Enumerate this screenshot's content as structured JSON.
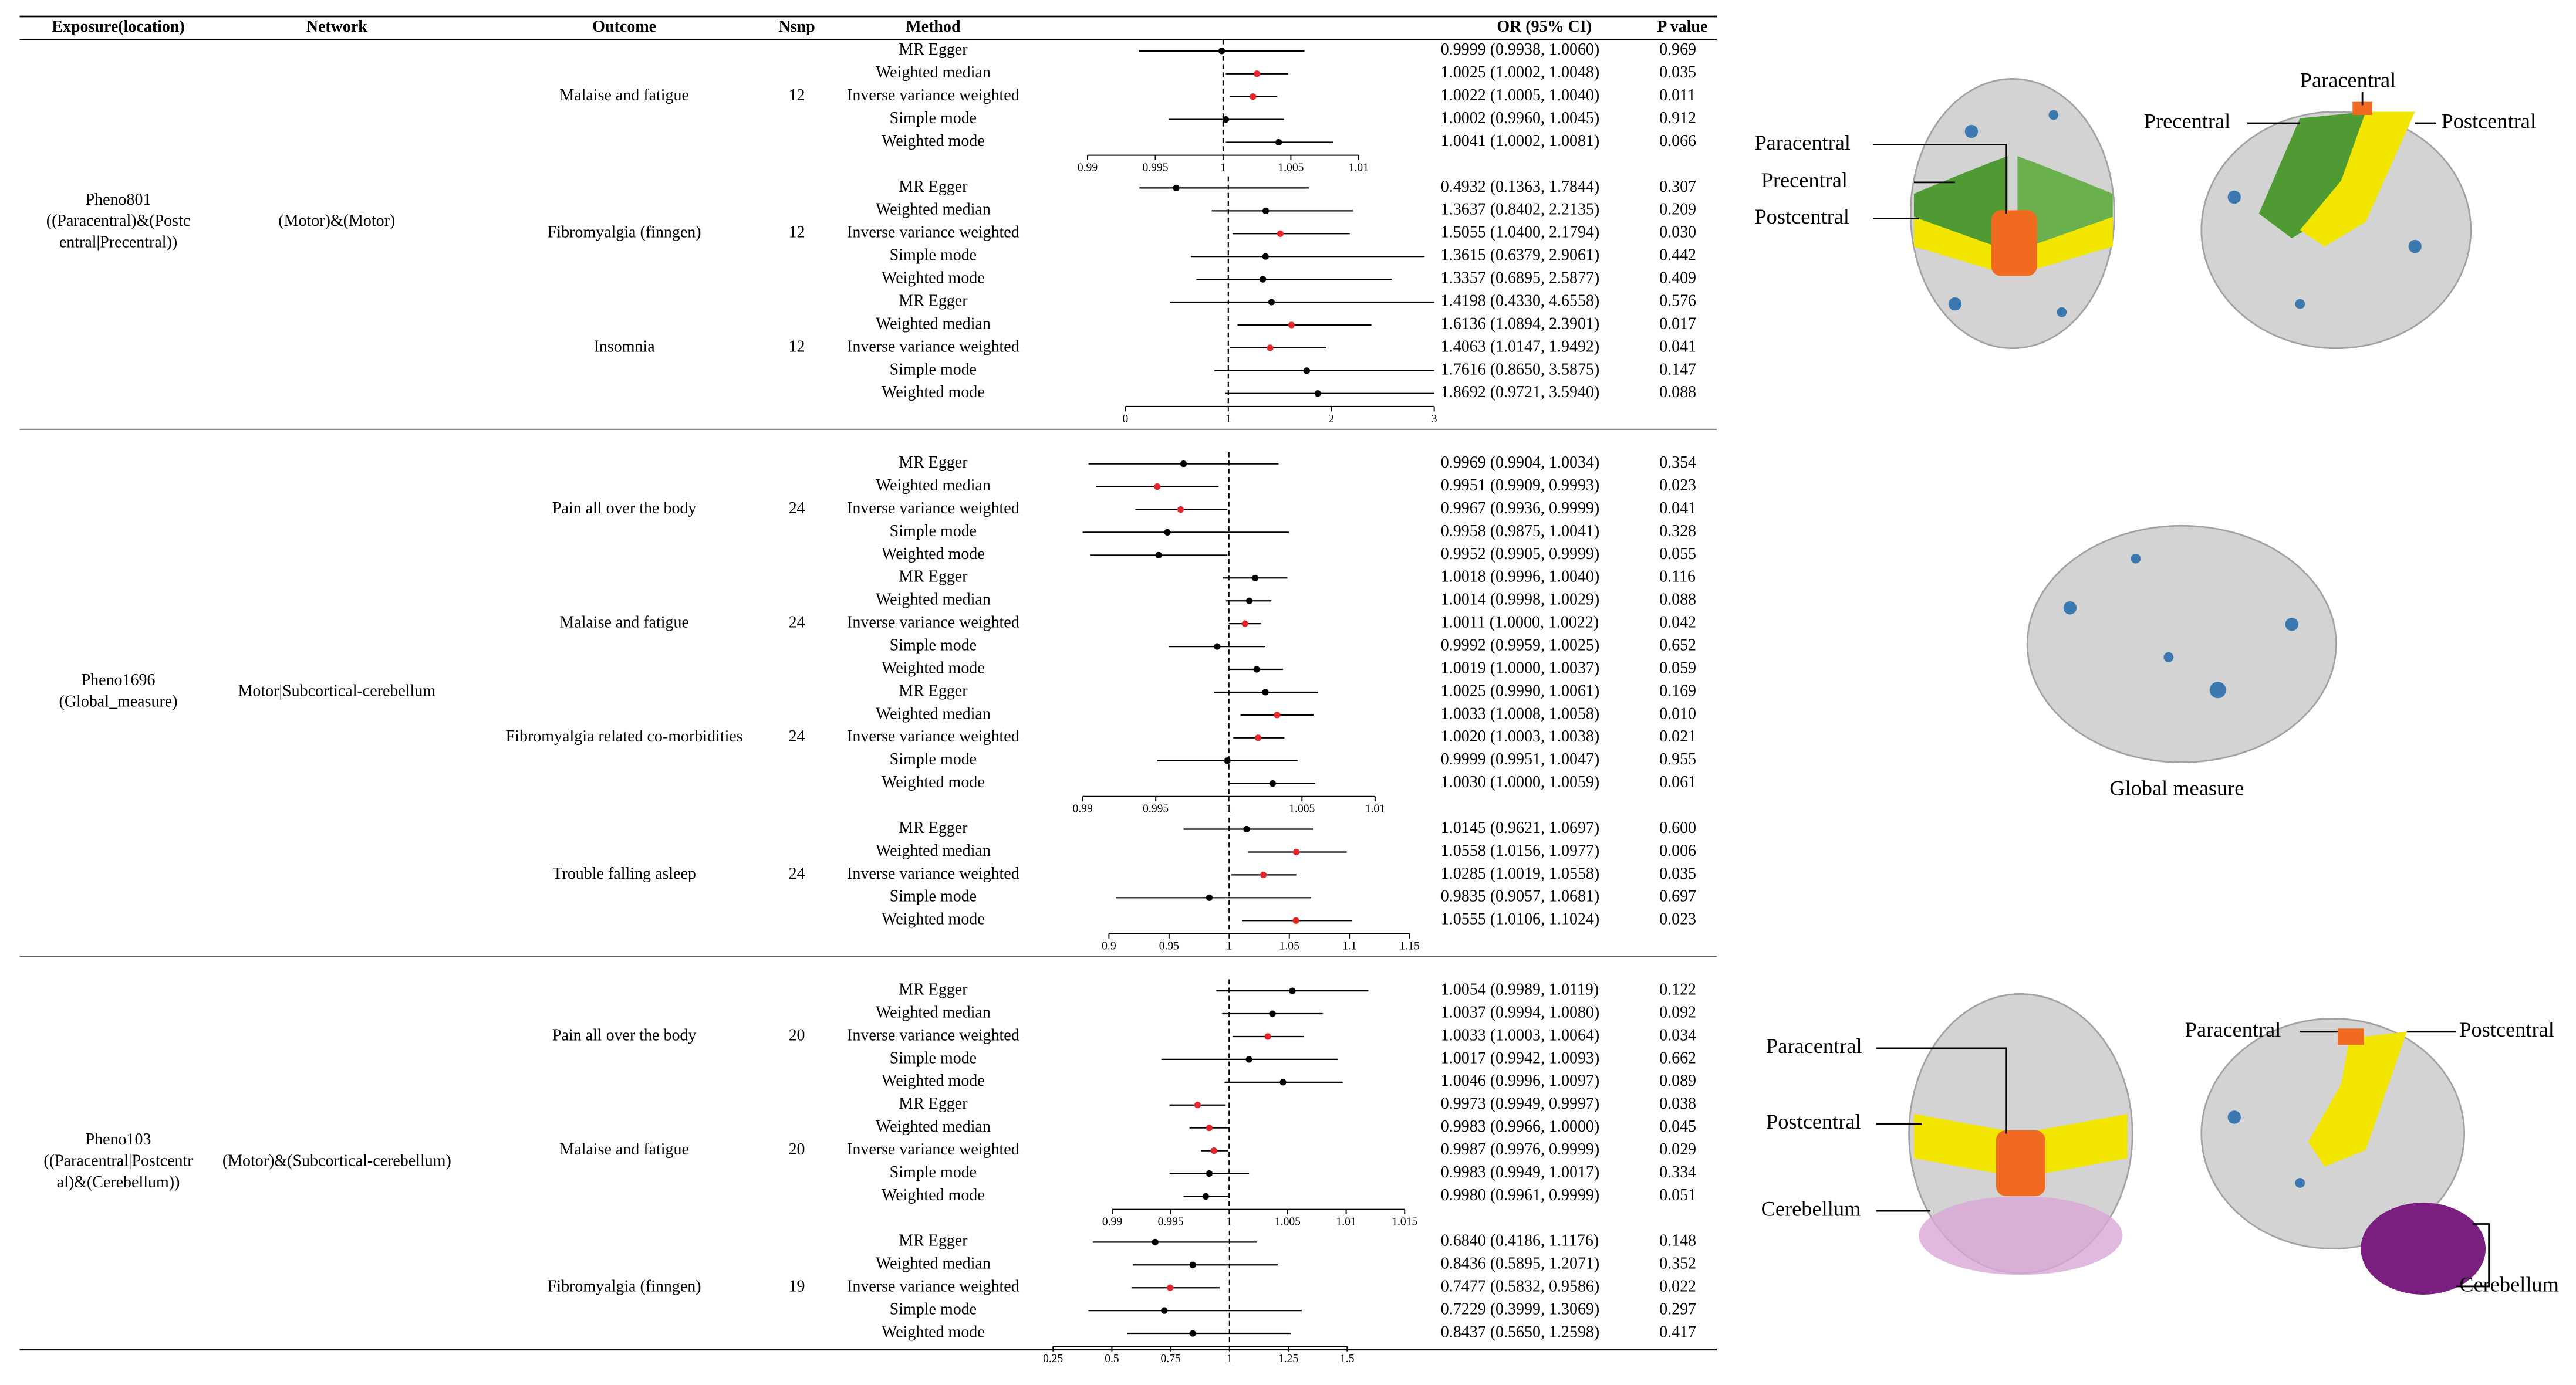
{
  "header": {
    "exposure": "Exposure(location)",
    "network": "Network",
    "outcome": "Outcome",
    "nsnp": "Nsnp",
    "method": "Method",
    "or": "OR (95% CI)",
    "p": "P value"
  },
  "reference_line": 1,
  "groups": [
    {
      "exposure": [
        "Pheno801",
        "((Paracentral)&(Postc",
        "entral|Precentral))"
      ],
      "network": "(Motor)&(Motor)",
      "panels": [
        {
          "xlim": [
            0.99,
            1.01
          ],
          "xticks": [
            0.99,
            0.995,
            1,
            1.005,
            1.01
          ],
          "outcomes": [
            {
              "name": "Malaise and fatigue",
              "nsnp": 12,
              "rows": [
                {
                  "method": "MR Egger",
                  "or": 0.9999,
                  "lo": 0.9938,
                  "hi": 1.006,
                  "or_ci": "0.9999 (0.9938, 1.0060)",
                  "p": "0.969",
                  "color": "#000000"
                },
                {
                  "method": "Weighted median",
                  "or": 1.0025,
                  "lo": 1.0002,
                  "hi": 1.0048,
                  "or_ci": "1.0025 (1.0002, 1.0048)",
                  "p": "0.035",
                  "color": "#e3262b"
                },
                {
                  "method": "Inverse variance weighted",
                  "or": 1.0022,
                  "lo": 1.0005,
                  "hi": 1.004,
                  "or_ci": "1.0022 (1.0005, 1.0040)",
                  "p": "0.011",
                  "color": "#e3262b"
                },
                {
                  "method": "Simple mode",
                  "or": 1.0002,
                  "lo": 0.996,
                  "hi": 1.0045,
                  "or_ci": "1.0002 (0.9960, 1.0045)",
                  "p": "0.912",
                  "color": "#000000"
                },
                {
                  "method": "Weighted mode",
                  "or": 1.0041,
                  "lo": 1.0002,
                  "hi": 1.0081,
                  "or_ci": "1.0041 (1.0002, 1.0081)",
                  "p": "0.066",
                  "color": "#000000"
                }
              ]
            }
          ]
        },
        {
          "xlim": [
            0,
            3
          ],
          "xticks": [
            0,
            1,
            2,
            3
          ],
          "outcomes": [
            {
              "name": "Fibromyalgia (finngen)",
              "nsnp": 12,
              "rows": [
                {
                  "method": "MR Egger",
                  "or": 0.4932,
                  "lo": 0.1363,
                  "hi": 1.7844,
                  "or_ci": "0.4932 (0.1363, 1.7844)",
                  "p": "0.307",
                  "color": "#000000"
                },
                {
                  "method": "Weighted median",
                  "or": 1.3637,
                  "lo": 0.8402,
                  "hi": 2.2135,
                  "or_ci": "1.3637 (0.8402, 2.2135)",
                  "p": "0.209",
                  "color": "#000000"
                },
                {
                  "method": "Inverse variance weighted",
                  "or": 1.5055,
                  "lo": 1.04,
                  "hi": 2.1794,
                  "or_ci": "1.5055 (1.0400, 2.1794)",
                  "p": "0.030",
                  "color": "#e3262b"
                },
                {
                  "method": "Simple mode",
                  "or": 1.3615,
                  "lo": 0.6379,
                  "hi": 2.9061,
                  "or_ci": "1.3615 (0.6379, 2.9061)",
                  "p": "0.442",
                  "color": "#000000"
                },
                {
                  "method": "Weighted mode",
                  "or": 1.3357,
                  "lo": 0.6895,
                  "hi": 2.5877,
                  "or_ci": "1.3357 (0.6895, 2.5877)",
                  "p": "0.409",
                  "color": "#000000"
                }
              ]
            },
            {
              "name": "Insomnia",
              "nsnp": 12,
              "rows": [
                {
                  "method": "MR Egger",
                  "or": 1.4198,
                  "lo": 0.433,
                  "hi": 4.6558,
                  "or_ci": "1.4198 (0.4330, 4.6558)",
                  "p": "0.576",
                  "color": "#000000"
                },
                {
                  "method": "Weighted median",
                  "or": 1.6136,
                  "lo": 1.0894,
                  "hi": 2.3901,
                  "or_ci": "1.6136 (1.0894, 2.3901)",
                  "p": "0.017",
                  "color": "#e3262b"
                },
                {
                  "method": "Inverse variance weighted",
                  "or": 1.4063,
                  "lo": 1.0147,
                  "hi": 1.9492,
                  "or_ci": "1.4063 (1.0147, 1.9492)",
                  "p": "0.041",
                  "color": "#e3262b"
                },
                {
                  "method": "Simple mode",
                  "or": 1.7616,
                  "lo": 0.865,
                  "hi": 3.5875,
                  "or_ci": "1.7616 (0.8650, 3.5875)",
                  "p": "0.147",
                  "color": "#000000"
                },
                {
                  "method": "Weighted mode",
                  "or": 1.8692,
                  "lo": 0.9721,
                  "hi": 3.594,
                  "or_ci": "1.8692 (0.9721, 3.5940)",
                  "p": "0.088",
                  "color": "#000000"
                }
              ]
            }
          ]
        }
      ]
    },
    {
      "exposure": [
        "Pheno1696",
        "(Global_measure)"
      ],
      "network": "Motor|Subcortical-cerebellum",
      "panels": [
        {
          "xlim": [
            0.99,
            1.01
          ],
          "xticks": [
            0.99,
            0.995,
            1,
            1.005,
            1.01
          ],
          "outcomes": [
            {
              "name": "Pain all over the body",
              "nsnp": 24,
              "rows": [
                {
                  "method": "MR Egger",
                  "or": 0.9969,
                  "lo": 0.9904,
                  "hi": 1.0034,
                  "or_ci": "0.9969 (0.9904, 1.0034)",
                  "p": "0.354",
                  "color": "#000000"
                },
                {
                  "method": "Weighted median",
                  "or": 0.9951,
                  "lo": 0.9909,
                  "hi": 0.9993,
                  "or_ci": "0.9951 (0.9909, 0.9993)",
                  "p": "0.023",
                  "color": "#e3262b"
                },
                {
                  "method": "Inverse variance weighted",
                  "or": 0.9967,
                  "lo": 0.9936,
                  "hi": 0.9999,
                  "or_ci": "0.9967 (0.9936, 0.9999)",
                  "p": "0.041",
                  "color": "#e3262b"
                },
                {
                  "method": "Simple mode",
                  "or": 0.9958,
                  "lo": 0.9875,
                  "hi": 1.0041,
                  "or_ci": "0.9958 (0.9875, 1.0041)",
                  "p": "0.328",
                  "color": "#000000"
                },
                {
                  "method": "Weighted mode",
                  "or": 0.9952,
                  "lo": 0.9905,
                  "hi": 0.9999,
                  "or_ci": "0.9952 (0.9905, 0.9999)",
                  "p": "0.055",
                  "color": "#000000"
                }
              ]
            },
            {
              "name": "Malaise and fatigue",
              "nsnp": 24,
              "rows": [
                {
                  "method": "MR Egger",
                  "or": 1.0018,
                  "lo": 0.9996,
                  "hi": 1.004,
                  "or_ci": "1.0018 (0.9996, 1.0040)",
                  "p": "0.116",
                  "color": "#000000"
                },
                {
                  "method": "Weighted median",
                  "or": 1.0014,
                  "lo": 0.9998,
                  "hi": 1.0029,
                  "or_ci": "1.0014 (0.9998, 1.0029)",
                  "p": "0.088",
                  "color": "#000000"
                },
                {
                  "method": "Inverse variance weighted",
                  "or": 1.0011,
                  "lo": 1.0,
                  "hi": 1.0022,
                  "or_ci": "1.0011 (1.0000, 1.0022)",
                  "p": "0.042",
                  "color": "#e3262b"
                },
                {
                  "method": "Simple mode",
                  "or": 0.9992,
                  "lo": 0.9959,
                  "hi": 1.0025,
                  "or_ci": "0.9992 (0.9959, 1.0025)",
                  "p": "0.652",
                  "color": "#000000"
                },
                {
                  "method": "Weighted mode",
                  "or": 1.0019,
                  "lo": 1.0,
                  "hi": 1.0037,
                  "or_ci": "1.0019 (1.0000, 1.0037)",
                  "p": "0.059",
                  "color": "#000000"
                }
              ]
            },
            {
              "name": "Fibromyalgia related co-morbidities",
              "nsnp": 24,
              "rows": [
                {
                  "method": "MR Egger",
                  "or": 1.0025,
                  "lo": 0.999,
                  "hi": 1.0061,
                  "or_ci": "1.0025 (0.9990, 1.0061)",
                  "p": "0.169",
                  "color": "#000000"
                },
                {
                  "method": "Weighted median",
                  "or": 1.0033,
                  "lo": 1.0008,
                  "hi": 1.0058,
                  "or_ci": "1.0033 (1.0008, 1.0058)",
                  "p": "0.010",
                  "color": "#e3262b"
                },
                {
                  "method": "Inverse variance weighted",
                  "or": 1.002,
                  "lo": 1.0003,
                  "hi": 1.0038,
                  "or_ci": "1.0020 (1.0003, 1.0038)",
                  "p": "0.021",
                  "color": "#e3262b"
                },
                {
                  "method": "Simple mode",
                  "or": 0.9999,
                  "lo": 0.9951,
                  "hi": 1.0047,
                  "or_ci": "0.9999 (0.9951, 1.0047)",
                  "p": "0.955",
                  "color": "#000000"
                },
                {
                  "method": "Weighted mode",
                  "or": 1.003,
                  "lo": 1.0,
                  "hi": 1.0059,
                  "or_ci": "1.0030 (1.0000, 1.0059)",
                  "p": "0.061",
                  "color": "#000000"
                }
              ]
            }
          ]
        },
        {
          "xlim": [
            0.9,
            1.15
          ],
          "xticks": [
            0.9,
            0.95,
            1,
            1.05,
            1.1,
            1.15
          ],
          "outcomes": [
            {
              "name": "Trouble falling asleep",
              "nsnp": 24,
              "rows": [
                {
                  "method": "MR Egger",
                  "or": 1.0145,
                  "lo": 0.9621,
                  "hi": 1.0697,
                  "or_ci": "1.0145 (0.9621, 1.0697)",
                  "p": "0.600",
                  "color": "#000000"
                },
                {
                  "method": "Weighted median",
                  "or": 1.0558,
                  "lo": 1.0156,
                  "hi": 1.0977,
                  "or_ci": "1.0558 (1.0156, 1.0977)",
                  "p": "0.006",
                  "color": "#e3262b"
                },
                {
                  "method": "Inverse variance weighted",
                  "or": 1.0285,
                  "lo": 1.0019,
                  "hi": 1.0558,
                  "or_ci": "1.0285 (1.0019, 1.0558)",
                  "p": "0.035",
                  "color": "#e3262b"
                },
                {
                  "method": "Simple mode",
                  "or": 0.9835,
                  "lo": 0.9057,
                  "hi": 1.0681,
                  "or_ci": "0.9835 (0.9057, 1.0681)",
                  "p": "0.697",
                  "color": "#000000"
                },
                {
                  "method": "Weighted mode",
                  "or": 1.0555,
                  "lo": 1.0106,
                  "hi": 1.1024,
                  "or_ci": "1.0555 (1.0106, 1.1024)",
                  "p": "0.023",
                  "color": "#e3262b"
                }
              ]
            }
          ]
        }
      ]
    },
    {
      "exposure": [
        "Pheno103",
        "((Paracentral|Postcentr",
        "al)&(Cerebellum))"
      ],
      "network": "(Motor)&(Subcortical-cerebellum)",
      "panels": [
        {
          "xlim": [
            0.99,
            1.015
          ],
          "xticks": [
            0.99,
            0.995,
            1,
            1.005,
            1.01,
            1.015
          ],
          "outcomes": [
            {
              "name": "Pain all over the body",
              "nsnp": 20,
              "rows": [
                {
                  "method": "MR Egger",
                  "or": 1.0054,
                  "lo": 0.9989,
                  "hi": 1.0119,
                  "or_ci": "1.0054 (0.9989, 1.0119)",
                  "p": "0.122",
                  "color": "#000000"
                },
                {
                  "method": "Weighted median",
                  "or": 1.0037,
                  "lo": 0.9994,
                  "hi": 1.008,
                  "or_ci": "1.0037 (0.9994, 1.0080)",
                  "p": "0.092",
                  "color": "#000000"
                },
                {
                  "method": "Inverse variance weighted",
                  "or": 1.0033,
                  "lo": 1.0003,
                  "hi": 1.0064,
                  "or_ci": "1.0033 (1.0003, 1.0064)",
                  "p": "0.034",
                  "color": "#e3262b"
                },
                {
                  "method": "Simple mode",
                  "or": 1.0017,
                  "lo": 0.9942,
                  "hi": 1.0093,
                  "or_ci": "1.0017 (0.9942, 1.0093)",
                  "p": "0.662",
                  "color": "#000000"
                },
                {
                  "method": "Weighted mode",
                  "or": 1.0046,
                  "lo": 0.9996,
                  "hi": 1.0097,
                  "or_ci": "1.0046 (0.9996, 1.0097)",
                  "p": "0.089",
                  "color": "#000000"
                }
              ]
            },
            {
              "name": "Malaise and fatigue",
              "nsnp": 20,
              "rows": [
                {
                  "method": "MR Egger",
                  "or": 0.9973,
                  "lo": 0.9949,
                  "hi": 0.9997,
                  "or_ci": "0.9973 (0.9949, 0.9997)",
                  "p": "0.038",
                  "color": "#e3262b"
                },
                {
                  "method": "Weighted median",
                  "or": 0.9983,
                  "lo": 0.9966,
                  "hi": 1.0,
                  "or_ci": "0.9983 (0.9966, 1.0000)",
                  "p": "0.045",
                  "color": "#e3262b"
                },
                {
                  "method": "Inverse variance weighted",
                  "or": 0.9987,
                  "lo": 0.9976,
                  "hi": 0.9999,
                  "or_ci": "0.9987 (0.9976, 0.9999)",
                  "p": "0.029",
                  "color": "#e3262b"
                },
                {
                  "method": "Simple mode",
                  "or": 0.9983,
                  "lo": 0.9949,
                  "hi": 1.0017,
                  "or_ci": "0.9983 (0.9949, 1.0017)",
                  "p": "0.334",
                  "color": "#000000"
                },
                {
                  "method": "Weighted mode",
                  "or": 0.998,
                  "lo": 0.9961,
                  "hi": 0.9999,
                  "or_ci": "0.9980 (0.9961, 0.9999)",
                  "p": "0.051",
                  "color": "#000000"
                }
              ]
            }
          ]
        },
        {
          "xlim": [
            0.25,
            1.5
          ],
          "xticks": [
            0.25,
            0.5,
            0.75,
            1,
            1.25,
            1.5
          ],
          "outcomes": [
            {
              "name": "Fibromyalgia (finngen)",
              "nsnp": 19,
              "rows": [
                {
                  "method": "MR Egger",
                  "or": 0.684,
                  "lo": 0.4186,
                  "hi": 1.1176,
                  "or_ci": "0.6840 (0.4186, 1.1176)",
                  "p": "0.148",
                  "color": "#000000"
                },
                {
                  "method": "Weighted median",
                  "or": 0.8436,
                  "lo": 0.5895,
                  "hi": 1.2071,
                  "or_ci": "0.8436 (0.5895, 1.2071)",
                  "p": "0.352",
                  "color": "#000000"
                },
                {
                  "method": "Inverse variance weighted",
                  "or": 0.7477,
                  "lo": 0.5832,
                  "hi": 0.9586,
                  "or_ci": "0.7477 (0.5832, 0.9586)",
                  "p": "0.022",
                  "color": "#e3262b"
                },
                {
                  "method": "Simple mode",
                  "or": 0.7229,
                  "lo": 0.3999,
                  "hi": 1.3069,
                  "or_ci": "0.7229 (0.3999, 1.3069)",
                  "p": "0.297",
                  "color": "#000000"
                },
                {
                  "method": "Weighted mode",
                  "or": 0.8437,
                  "lo": 0.565,
                  "hi": 1.2598,
                  "or_ci": "0.8437 (0.5650, 1.2598)",
                  "p": "0.417",
                  "color": "#000000"
                }
              ]
            }
          ]
        }
      ]
    }
  ],
  "figures": [
    {
      "labels": [
        "Paracentral",
        "Precentral",
        "Postcentral"
      ]
    },
    {
      "labels": [
        "Paracentral",
        "Precentral",
        "Postcentral"
      ]
    },
    {
      "caption": "Global measure"
    },
    {
      "labels": [
        "Paracentral",
        "Postcentral",
        "Cerebellum"
      ]
    },
    {
      "labels": [
        "Paracentral",
        "Postcentral",
        "Cerebellum"
      ]
    }
  ]
}
